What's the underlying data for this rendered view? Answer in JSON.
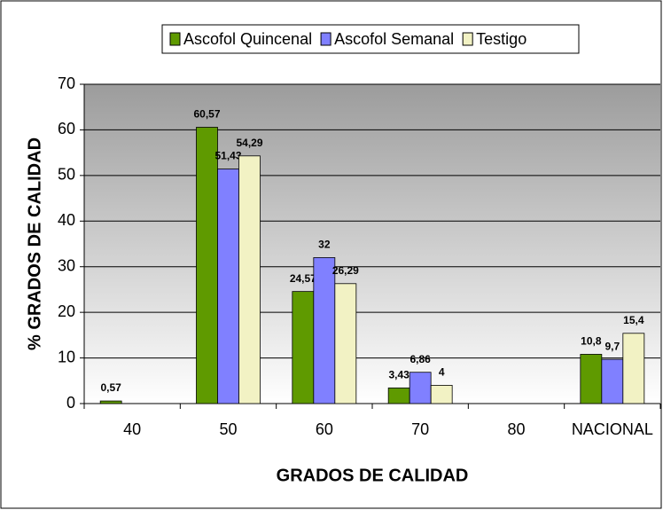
{
  "chart_data": {
    "type": "bar",
    "xlabel": "GRADOS DE CALIDAD",
    "ylabel": "% GRADOS DE CALIDAD",
    "categories": [
      "40",
      "50",
      "60",
      "70",
      "80",
      "NACIONAL"
    ],
    "series": [
      {
        "name": "Ascofol Quincenal",
        "color": "#5f9a00",
        "values": [
          0.57,
          60.57,
          24.57,
          3.43,
          null,
          10.8
        ],
        "value_labels": [
          "0,57",
          "60,57",
          "24,57",
          "3,43",
          null,
          "10,8"
        ]
      },
      {
        "name": "Ascofol Semanal",
        "color": "#8080ff",
        "values": [
          null,
          51.43,
          32,
          6.86,
          null,
          9.7
        ],
        "value_labels": [
          null,
          "51,43",
          "32",
          "6,86",
          null,
          "9,7"
        ]
      },
      {
        "name": "Testigo",
        "color": "#f2f2c4",
        "values": [
          null,
          54.29,
          26.29,
          4,
          null,
          15.4
        ],
        "value_labels": [
          null,
          "54,29",
          "26,29",
          "4",
          null,
          "15,4"
        ]
      }
    ],
    "ylim": [
      0,
      70
    ],
    "yticks": [
      0,
      10,
      20,
      30,
      40,
      50,
      60,
      70
    ],
    "grid": true
  }
}
